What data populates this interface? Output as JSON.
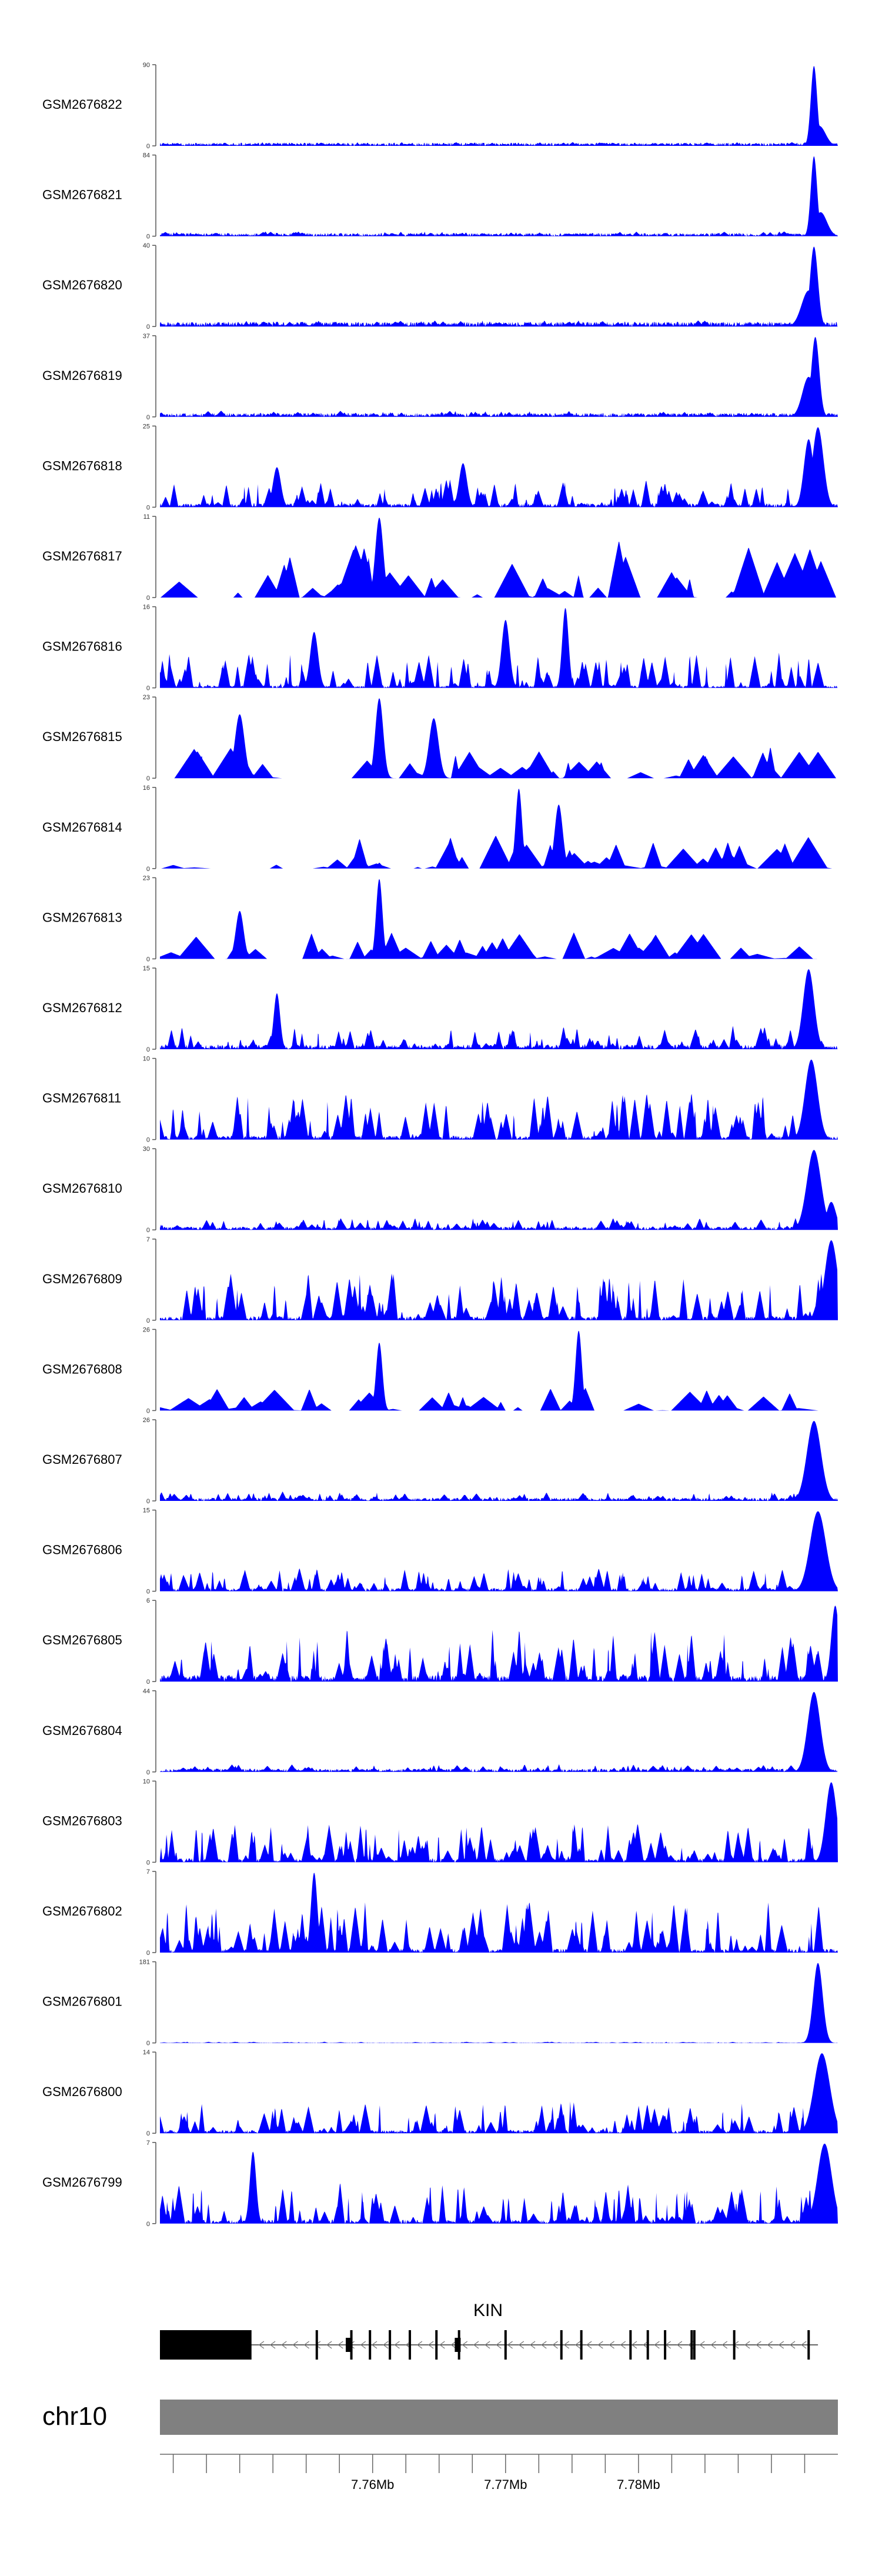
{
  "chart_data": {
    "type": "area",
    "description_type": "genome browser coverage tracks",
    "fill_color": "#0000ff",
    "axis_color": "#555555",
    "gene_color": "#000000",
    "ideogram_color": "#808080",
    "x_range_mb": [
      7.744,
      7.795
    ],
    "tracks": [
      {
        "name": "GSM2676822",
        "ymax": "90",
        "ymin": "0",
        "ymax_value": 90,
        "peaks": [
          {
            "x": 7.7932,
            "h": 1.0,
            "w": 0.0004
          },
          {
            "x": 7.7936,
            "h": 0.25,
            "w": 0.0008
          }
        ],
        "base": 0.04,
        "noise": 0.05,
        "gaps": false
      },
      {
        "name": "GSM2676821",
        "ymax": "84",
        "ymin": "0",
        "ymax_value": 84,
        "peaks": [
          {
            "x": 7.7932,
            "h": 1.0,
            "w": 0.0004
          },
          {
            "x": 7.7937,
            "h": 0.3,
            "w": 0.0008
          }
        ],
        "base": 0.04,
        "noise": 0.06,
        "gaps": false
      },
      {
        "name": "GSM2676820",
        "ymax": "40",
        "ymin": "0",
        "ymax_value": 40,
        "peaks": [
          {
            "x": 7.7932,
            "h": 1.0,
            "w": 0.0005
          },
          {
            "x": 7.7928,
            "h": 0.45,
            "w": 0.0009
          }
        ],
        "base": 0.06,
        "noise": 0.08,
        "gaps": false
      },
      {
        "name": "GSM2676819",
        "ymax": "37",
        "ymin": "0",
        "ymax_value": 37,
        "peaks": [
          {
            "x": 7.7933,
            "h": 1.0,
            "w": 0.0005
          },
          {
            "x": 7.7928,
            "h": 0.5,
            "w": 0.0008
          }
        ],
        "base": 0.05,
        "noise": 0.08,
        "gaps": false
      },
      {
        "name": "GSM2676818",
        "ymax": "25",
        "ymin": "0",
        "ymax_value": 25,
        "peaks": [
          {
            "x": 7.7935,
            "h": 1.0,
            "w": 0.0007
          },
          {
            "x": 7.7928,
            "h": 0.85,
            "w": 0.0006
          },
          {
            "x": 7.7528,
            "h": 0.5,
            "w": 0.0005
          },
          {
            "x": 7.7668,
            "h": 0.55,
            "w": 0.0005
          }
        ],
        "base": 0.05,
        "noise": 0.35,
        "gaps": false
      },
      {
        "name": "GSM2676817",
        "ymax": "11",
        "ymin": "0",
        "ymax_value": 11,
        "peaks": [
          {
            "x": 7.7605,
            "h": 1.0,
            "w": 0.0005
          }
        ],
        "base": 0.0,
        "noise": 0.75,
        "gaps": true
      },
      {
        "name": "GSM2676816",
        "ymax": "16",
        "ymin": "0",
        "ymax_value": 16,
        "peaks": [
          {
            "x": 7.7745,
            "h": 1.0,
            "w": 0.0004
          },
          {
            "x": 7.7556,
            "h": 0.7,
            "w": 0.0005
          },
          {
            "x": 7.77,
            "h": 0.85,
            "w": 0.0005
          }
        ],
        "base": 0.03,
        "noise": 0.45,
        "gaps": false
      },
      {
        "name": "GSM2676815",
        "ymax": "23",
        "ymin": "0",
        "ymax_value": 23,
        "peaks": [
          {
            "x": 7.7605,
            "h": 1.0,
            "w": 0.0005
          },
          {
            "x": 7.75,
            "h": 0.8,
            "w": 0.0006
          },
          {
            "x": 7.7646,
            "h": 0.75,
            "w": 0.0006
          }
        ],
        "base": 0.0,
        "noise": 0.4,
        "gaps": true
      },
      {
        "name": "GSM2676814",
        "ymax": "16",
        "ymin": "0",
        "ymax_value": 16,
        "peaks": [
          {
            "x": 7.771,
            "h": 1.0,
            "w": 0.0004
          },
          {
            "x": 7.774,
            "h": 0.8,
            "w": 0.0005
          }
        ],
        "base": 0.0,
        "noise": 0.45,
        "gaps": true
      },
      {
        "name": "GSM2676813",
        "ymax": "23",
        "ymin": "0",
        "ymax_value": 23,
        "peaks": [
          {
            "x": 7.7605,
            "h": 1.0,
            "w": 0.0004
          },
          {
            "x": 7.75,
            "h": 0.6,
            "w": 0.0005
          }
        ],
        "base": 0.0,
        "noise": 0.35,
        "gaps": true
      },
      {
        "name": "GSM2676812",
        "ymax": "15",
        "ymin": "0",
        "ymax_value": 15,
        "peaks": [
          {
            "x": 7.7928,
            "h": 1.0,
            "w": 0.0007
          },
          {
            "x": 7.7528,
            "h": 0.7,
            "w": 0.0004
          }
        ],
        "base": 0.06,
        "noise": 0.3,
        "gaps": false
      },
      {
        "name": "GSM2676811",
        "ymax": "10",
        "ymin": "0",
        "ymax_value": 10,
        "peaks": [
          {
            "x": 7.793,
            "h": 1.0,
            "w": 0.0008
          }
        ],
        "base": 0.05,
        "noise": 0.6,
        "gaps": false
      },
      {
        "name": "GSM2676810",
        "ymax": "30",
        "ymin": "0",
        "ymax_value": 30,
        "peaks": [
          {
            "x": 7.7932,
            "h": 1.0,
            "w": 0.0009
          },
          {
            "x": 7.7945,
            "h": 0.35,
            "w": 0.0006
          }
        ],
        "base": 0.04,
        "noise": 0.15,
        "gaps": false
      },
      {
        "name": "GSM2676809",
        "ymax": "7",
        "ymin": "0",
        "ymax_value": 7,
        "peaks": [
          {
            "x": 7.7945,
            "h": 1.0,
            "w": 0.0008
          }
        ],
        "base": 0.05,
        "noise": 0.6,
        "gaps": false
      },
      {
        "name": "GSM2676808",
        "ymax": "26",
        "ymin": "0",
        "ymax_value": 26,
        "peaks": [
          {
            "x": 7.7605,
            "h": 0.85,
            "w": 0.0004
          },
          {
            "x": 7.7755,
            "h": 1.0,
            "w": 0.0004
          }
        ],
        "base": 0.0,
        "noise": 0.3,
        "gaps": true
      },
      {
        "name": "GSM2676807",
        "ymax": "26",
        "ymin": "0",
        "ymax_value": 26,
        "peaks": [
          {
            "x": 7.7932,
            "h": 1.0,
            "w": 0.0009
          }
        ],
        "base": 0.04,
        "noise": 0.12,
        "gaps": false
      },
      {
        "name": "GSM2676806",
        "ymax": "15",
        "ymin": "0",
        "ymax_value": 15,
        "peaks": [
          {
            "x": 7.7935,
            "h": 1.0,
            "w": 0.001
          }
        ],
        "base": 0.04,
        "noise": 0.3,
        "gaps": false
      },
      {
        "name": "GSM2676805",
        "ymax": "6",
        "ymin": "0",
        "ymax_value": 6,
        "peaks": [
          {
            "x": 7.7948,
            "h": 0.95,
            "w": 0.0005
          }
        ],
        "base": 0.08,
        "noise": 0.7,
        "gaps": false
      },
      {
        "name": "GSM2676804",
        "ymax": "44",
        "ymin": "0",
        "ymax_value": 44,
        "peaks": [
          {
            "x": 7.7932,
            "h": 1.0,
            "w": 0.0008
          }
        ],
        "base": 0.04,
        "noise": 0.1,
        "gaps": false
      },
      {
        "name": "GSM2676803",
        "ymax": "10",
        "ymin": "0",
        "ymax_value": 10,
        "peaks": [
          {
            "x": 7.7945,
            "h": 1.0,
            "w": 0.0007
          }
        ],
        "base": 0.05,
        "noise": 0.5,
        "gaps": false
      },
      {
        "name": "GSM2676802",
        "ymax": "7",
        "ymin": "0",
        "ymax_value": 7,
        "peaks": [
          {
            "x": 7.7556,
            "h": 1.0,
            "w": 0.0004
          }
        ],
        "base": 0.05,
        "noise": 0.65,
        "gaps": false
      },
      {
        "name": "GSM2676801",
        "ymax": "181",
        "ymin": "0",
        "ymax_value": 181,
        "peaks": [
          {
            "x": 7.7935,
            "h": 1.0,
            "w": 0.0006
          }
        ],
        "base": 0.005,
        "noise": 0.015,
        "gaps": false
      },
      {
        "name": "GSM2676800",
        "ymax": "14",
        "ymin": "0",
        "ymax_value": 14,
        "peaks": [
          {
            "x": 7.7938,
            "h": 1.0,
            "w": 0.001
          }
        ],
        "base": 0.04,
        "noise": 0.4,
        "gaps": false
      },
      {
        "name": "GSM2676799",
        "ymax": "7",
        "ymin": "0",
        "ymax_value": 7,
        "peaks": [
          {
            "x": 7.794,
            "h": 1.0,
            "w": 0.0009
          },
          {
            "x": 7.751,
            "h": 0.9,
            "w": 0.0004
          }
        ],
        "base": 0.05,
        "noise": 0.55,
        "gaps": false
      }
    ],
    "gene": {
      "name": "KIN",
      "start_mb": 7.744,
      "end_mb": 7.7935,
      "utr_block": [
        7.744,
        7.7508
      ],
      "exons_mb": [
        7.7508,
        7.7558,
        7.7584,
        7.7598,
        7.7613,
        7.7628,
        7.7648,
        7.7665,
        7.77,
        7.7742,
        7.7757,
        7.7794,
        7.7807,
        7.782,
        7.784,
        7.7842,
        7.7872,
        7.7928
      ],
      "thick_exons_mb": [
        7.7582,
        7.7664
      ]
    },
    "chromosome": {
      "name": "chr10",
      "ticks_mb": [
        7.745,
        7.7475,
        7.75,
        7.7525,
        7.755,
        7.7575,
        7.76,
        7.7625,
        7.765,
        7.7675,
        7.77,
        7.7725,
        7.775,
        7.7775,
        7.78,
        7.7825,
        7.785,
        7.7875,
        7.79,
        7.7925
      ],
      "labeled_ticks": [
        {
          "value": 7.76,
          "label": "7.76Mb"
        },
        {
          "value": 7.77,
          "label": "7.77Mb"
        },
        {
          "value": 7.78,
          "label": "7.78Mb"
        }
      ]
    }
  }
}
